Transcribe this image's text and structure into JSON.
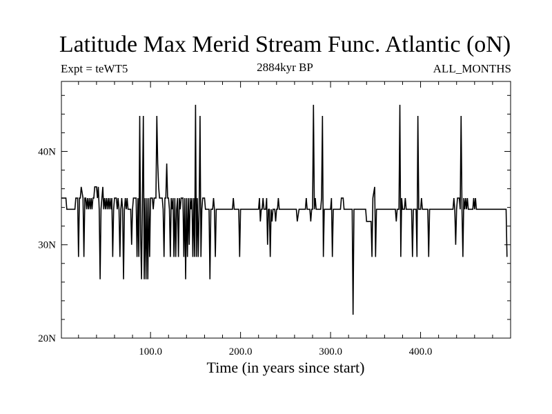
{
  "header": {
    "title": "Latitude Max Merid Stream Func. Atlantic (oN)",
    "left_label": "Expt = teWT5",
    "center_label": "2884kyr BP",
    "right_label": "ALL_MONTHS"
  },
  "chart_data": {
    "type": "line",
    "title": "Latitude Max Merid Stream Func. Atlantic (oN)",
    "xlabel": "Time (in years since start)",
    "ylabel": "",
    "xlim": [
      1,
      500
    ],
    "ylim": [
      20,
      47.5
    ],
    "x_ticks": [
      100,
      200,
      300,
      400
    ],
    "x_tick_labels": [
      "100.0",
      "200.0",
      "300.0",
      "400.0"
    ],
    "y_ticks": [
      20,
      30,
      40
    ],
    "y_tick_labels": [
      "20N",
      "30N",
      "40N"
    ],
    "grid": false,
    "series": [
      {
        "points": [
          [
            1,
            35
          ],
          [
            6,
            35
          ],
          [
            7,
            33.8
          ],
          [
            16,
            33.8
          ],
          [
            17,
            35
          ],
          [
            19,
            35
          ],
          [
            20,
            28.7
          ],
          [
            21,
            35
          ],
          [
            22,
            35
          ],
          [
            23,
            36.2
          ],
          [
            25,
            35
          ],
          [
            26,
            28.7
          ],
          [
            27,
            35
          ],
          [
            28,
            35
          ],
          [
            29,
            33.8
          ],
          [
            30,
            35
          ],
          [
            31,
            33.8
          ],
          [
            32,
            35
          ],
          [
            33,
            33.8
          ],
          [
            34,
            35
          ],
          [
            35,
            33.8
          ],
          [
            36,
            35
          ],
          [
            37,
            35
          ],
          [
            38,
            36.2
          ],
          [
            40,
            36.2
          ],
          [
            41,
            35
          ],
          [
            42,
            36.2
          ],
          [
            43,
            33.8
          ],
          [
            44,
            26.3
          ],
          [
            45,
            33.8
          ],
          [
            46,
            35
          ],
          [
            47,
            36.2
          ],
          [
            48,
            33.8
          ],
          [
            49,
            35
          ],
          [
            50,
            33.8
          ],
          [
            51,
            35
          ],
          [
            52,
            33.8
          ],
          [
            53,
            35
          ],
          [
            54,
            33.8
          ],
          [
            55,
            35
          ],
          [
            56,
            33.8
          ],
          [
            57,
            35
          ],
          [
            58,
            28.7
          ],
          [
            59,
            33.8
          ],
          [
            60,
            35
          ],
          [
            62,
            35
          ],
          [
            63,
            33.8
          ],
          [
            64,
            35
          ],
          [
            65,
            33.8
          ],
          [
            66,
            28.7
          ],
          [
            67,
            33.8
          ],
          [
            68,
            35
          ],
          [
            69,
            33.8
          ],
          [
            70,
            26.3
          ],
          [
            71,
            33.8
          ],
          [
            72,
            35
          ],
          [
            73,
            33.8
          ],
          [
            74,
            35
          ],
          [
            75,
            33.8
          ],
          [
            78,
            33.8
          ],
          [
            79,
            30
          ],
          [
            80,
            33.8
          ],
          [
            81,
            35
          ],
          [
            84,
            35
          ],
          [
            85,
            28.7
          ],
          [
            86,
            35
          ],
          [
            87,
            28.7
          ],
          [
            88,
            43.8
          ],
          [
            89,
            31
          ],
          [
            90,
            26.3
          ],
          [
            91,
            35
          ],
          [
            92,
            43.8
          ],
          [
            93,
            26.3
          ],
          [
            94,
            35
          ],
          [
            95,
            26.3
          ],
          [
            96,
            35
          ],
          [
            97,
            26.3
          ],
          [
            98,
            35
          ],
          [
            99,
            28.7
          ],
          [
            100,
            35
          ],
          [
            102,
            35
          ],
          [
            103,
            33.8
          ],
          [
            104,
            35
          ],
          [
            106,
            35
          ],
          [
            107,
            43.8
          ],
          [
            108,
            38.7
          ],
          [
            109,
            36.2
          ],
          [
            110,
            35
          ],
          [
            113,
            35
          ],
          [
            114,
            33.8
          ],
          [
            115,
            28.7
          ],
          [
            116,
            35
          ],
          [
            117,
            35
          ],
          [
            118,
            38.7
          ],
          [
            119,
            35
          ],
          [
            120,
            35
          ],
          [
            121,
            33.8
          ],
          [
            122,
            28.7
          ],
          [
            123,
            35
          ],
          [
            124,
            33.8
          ],
          [
            125,
            35
          ],
          [
            126,
            28.7
          ],
          [
            127,
            35
          ],
          [
            128,
            28.7
          ],
          [
            129,
            33.8
          ],
          [
            130,
            35
          ],
          [
            131,
            28.7
          ],
          [
            132,
            35
          ],
          [
            133,
            33.8
          ],
          [
            134,
            35
          ],
          [
            136,
            35
          ],
          [
            137,
            28.7
          ],
          [
            138,
            35
          ],
          [
            139,
            26.3
          ],
          [
            140,
            35
          ],
          [
            141,
            28.7
          ],
          [
            142,
            35
          ],
          [
            143,
            30
          ],
          [
            144,
            35
          ],
          [
            145,
            33.8
          ],
          [
            146,
            35
          ],
          [
            147,
            28.7
          ],
          [
            148,
            35
          ],
          [
            149,
            28.7
          ],
          [
            150,
            45
          ],
          [
            151,
            28.7
          ],
          [
            152,
            35
          ],
          [
            153,
            28.7
          ],
          [
            154,
            33.8
          ],
          [
            155,
            43.8
          ],
          [
            156,
            28.7
          ],
          [
            157,
            33.8
          ],
          [
            158,
            35
          ],
          [
            160,
            35
          ],
          [
            161,
            33.8
          ],
          [
            165,
            33.8
          ],
          [
            166,
            26.3
          ],
          [
            167,
            33.8
          ],
          [
            169,
            33.8
          ],
          [
            170,
            35
          ],
          [
            171,
            33.8
          ],
          [
            172,
            28.7
          ],
          [
            173,
            33.8
          ],
          [
            191,
            33.8
          ],
          [
            192,
            35
          ],
          [
            193,
            33.8
          ],
          [
            198,
            33.8
          ],
          [
            199,
            28.7
          ],
          [
            200,
            33.8
          ],
          [
            220,
            33.8
          ],
          [
            221,
            35
          ],
          [
            222,
            32.5
          ],
          [
            223,
            33.8
          ],
          [
            224,
            33.8
          ],
          [
            225,
            35
          ],
          [
            226,
            33.8
          ],
          [
            228,
            33.8
          ],
          [
            229,
            35
          ],
          [
            230,
            30
          ],
          [
            231,
            33.8
          ],
          [
            232,
            33.8
          ],
          [
            233,
            28.7
          ],
          [
            234,
            33.8
          ],
          [
            235,
            32.5
          ],
          [
            236,
            33.8
          ],
          [
            238,
            33.8
          ],
          [
            239,
            32.5
          ],
          [
            240,
            33.8
          ],
          [
            241,
            33.8
          ],
          [
            242,
            35
          ],
          [
            243,
            33.8
          ],
          [
            262,
            33.8
          ],
          [
            263,
            32.5
          ],
          [
            265,
            33.8
          ],
          [
            272,
            33.8
          ],
          [
            273,
            35
          ],
          [
            274,
            33.8
          ],
          [
            277,
            33.8
          ],
          [
            278,
            32.5
          ],
          [
            279,
            33.8
          ],
          [
            280,
            33.8
          ],
          [
            281,
            45
          ],
          [
            282,
            33.8
          ],
          [
            283,
            35
          ],
          [
            284,
            33.8
          ],
          [
            289,
            33.8
          ],
          [
            290,
            35
          ],
          [
            291,
            43.8
          ],
          [
            292,
            28.7
          ],
          [
            293,
            33.8
          ],
          [
            300,
            33.8
          ],
          [
            301,
            35
          ],
          [
            302,
            28.7
          ],
          [
            303,
            33.8
          ],
          [
            311,
            33.8
          ],
          [
            312,
            35
          ],
          [
            314,
            35
          ],
          [
            315,
            33.8
          ],
          [
            324,
            33.8
          ],
          [
            325,
            22.5
          ],
          [
            326,
            33.8
          ],
          [
            339,
            33.8
          ],
          [
            340,
            32.5
          ],
          [
            345,
            32.5
          ],
          [
            346,
            28.7
          ],
          [
            347,
            35
          ],
          [
            349,
            36.2
          ],
          [
            350,
            28.7
          ],
          [
            351,
            33.8
          ],
          [
            372,
            33.8
          ],
          [
            373,
            32.5
          ],
          [
            374,
            33.8
          ],
          [
            376,
            33.8
          ],
          [
            377,
            45
          ],
          [
            378,
            28.7
          ],
          [
            379,
            35
          ],
          [
            380,
            33.8
          ],
          [
            382,
            33.8
          ],
          [
            383,
            35
          ],
          [
            384,
            33.8
          ],
          [
            390,
            33.8
          ],
          [
            391,
            28.7
          ],
          [
            392,
            33.8
          ],
          [
            395,
            33.8
          ],
          [
            396,
            28.7
          ],
          [
            397,
            43.8
          ],
          [
            398,
            33.8
          ],
          [
            400,
            33.8
          ],
          [
            401,
            35
          ],
          [
            402,
            33.8
          ],
          [
            408,
            33.8
          ],
          [
            409,
            28.7
          ],
          [
            410,
            33.8
          ],
          [
            436,
            33.8
          ],
          [
            437,
            35
          ],
          [
            438,
            33.8
          ],
          [
            439,
            30
          ],
          [
            440,
            33.8
          ],
          [
            441,
            35
          ],
          [
            443,
            35
          ],
          [
            444,
            33.8
          ],
          [
            445,
            43.8
          ],
          [
            446,
            33.8
          ],
          [
            447,
            28.7
          ],
          [
            448,
            35
          ],
          [
            449,
            33.8
          ],
          [
            450,
            35
          ],
          [
            451,
            33.8
          ],
          [
            452,
            35
          ],
          [
            453,
            33.8
          ],
          [
            458,
            33.8
          ],
          [
            459,
            35
          ],
          [
            460,
            33.8
          ],
          [
            461,
            35
          ],
          [
            462,
            33.8
          ],
          [
            495,
            33.8
          ],
          [
            496,
            28.7
          ]
        ]
      }
    ]
  }
}
